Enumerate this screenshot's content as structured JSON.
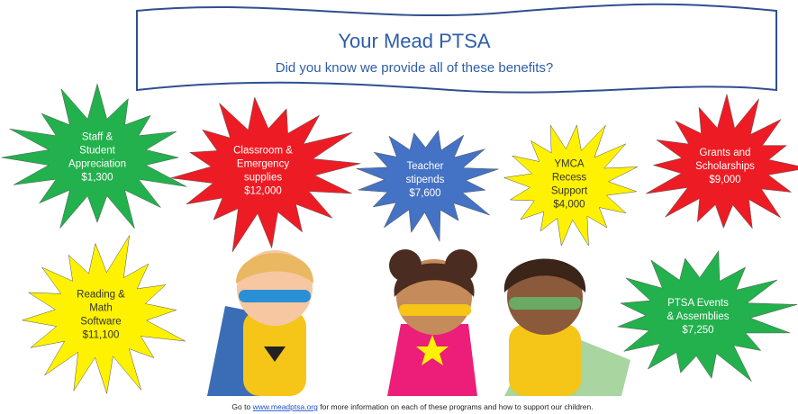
{
  "header": {
    "title": "Your Mead PTSA",
    "subtitle": "Did you know we provide all of these benefits?"
  },
  "benefits": [
    {
      "lines": [
        "Staff &",
        "Student",
        "Appreciation"
      ],
      "amount": "$1,300",
      "color": "#22b14c"
    },
    {
      "lines": [
        "Classroom &",
        "Emergency",
        "supplies"
      ],
      "amount": "$12,000",
      "color": "#ed1c24"
    },
    {
      "lines": [
        "Teacher",
        "stipends"
      ],
      "amount": "$7,600",
      "color": "#4472c4"
    },
    {
      "lines": [
        "YMCA",
        "Recess",
        "Support"
      ],
      "amount": "$4,000",
      "color": "#fff200"
    },
    {
      "lines": [
        "Grants and",
        "Scholarships"
      ],
      "amount": "$9,000",
      "color": "#ed1c24"
    },
    {
      "lines": [
        "Reading &",
        "Math",
        "Software"
      ],
      "amount": "$11,100",
      "color": "#fff200"
    },
    {
      "lines": [
        "PTSA Events",
        "& Assemblies"
      ],
      "amount": "$7,250",
      "color": "#22b14c"
    }
  ],
  "footer": {
    "before": "Go to",
    "link": "www.meadptsa.org",
    "after": "for more information on each of these programs and how to support our children."
  }
}
